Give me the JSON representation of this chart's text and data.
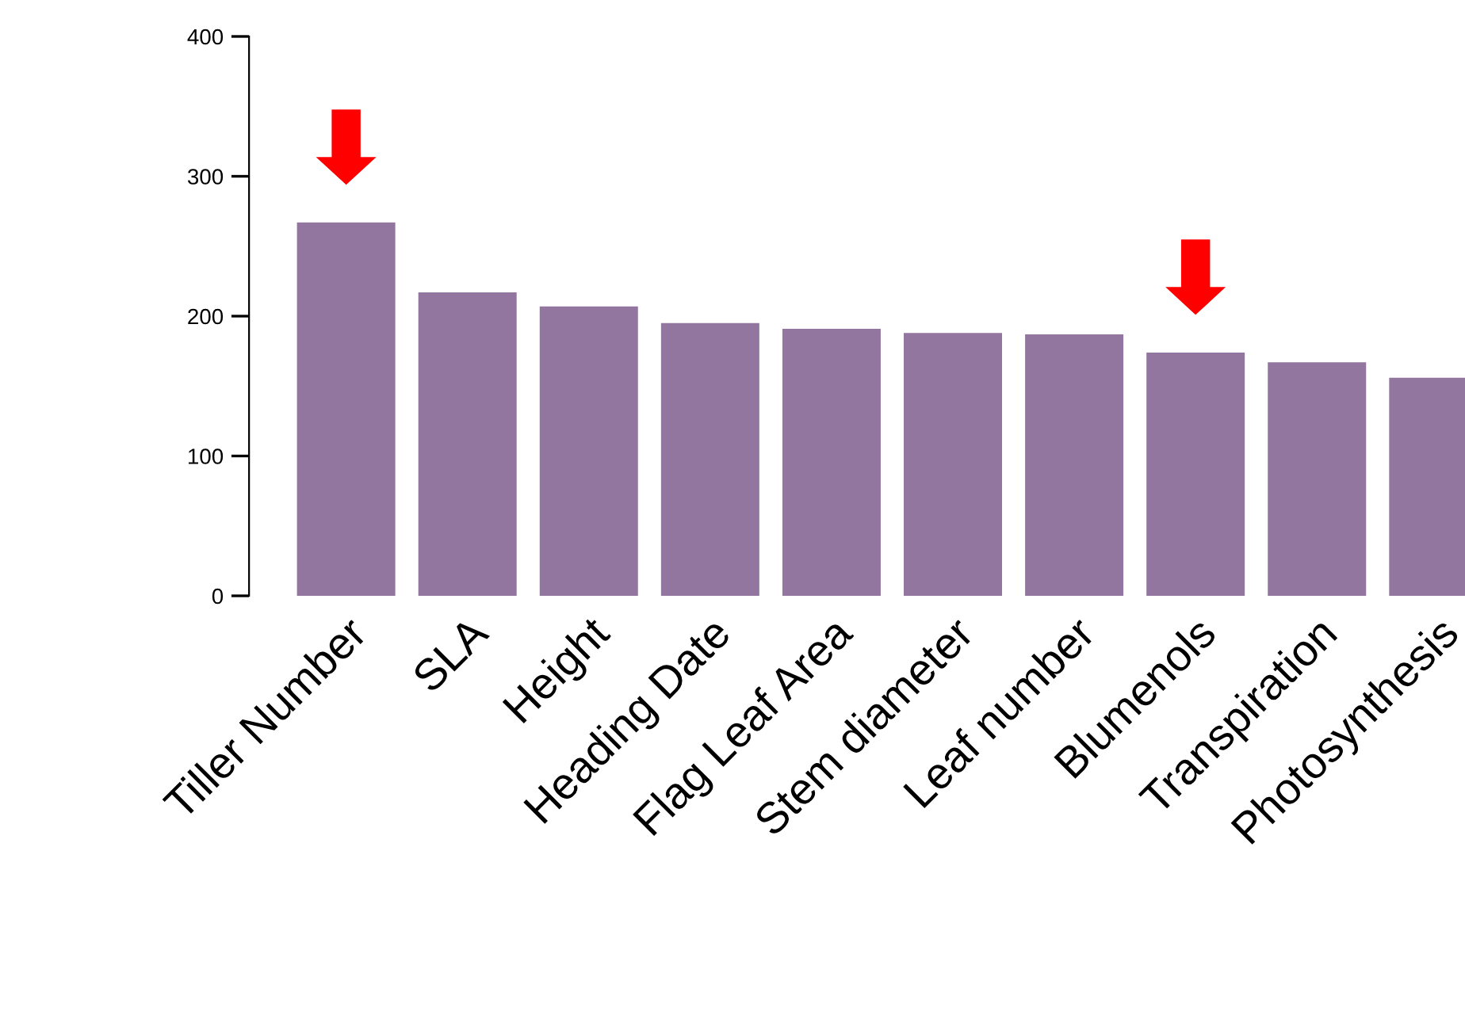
{
  "chart_data": {
    "type": "bar",
    "categories": [
      "Tiller Number",
      "SLA",
      "Height",
      "Heading Date",
      "Flag Leaf Area",
      "Stem diameter",
      "Leaf number",
      "Blumenols",
      "Transpiration",
      "Photosynthesis"
    ],
    "values": [
      267,
      217,
      207,
      195,
      191,
      188,
      187,
      174,
      167,
      156
    ],
    "color": "#9276a0",
    "ylim": [
      0,
      400
    ],
    "yticks": [
      0,
      100,
      200,
      300,
      400
    ],
    "grid": false,
    "legend": false
  }
}
